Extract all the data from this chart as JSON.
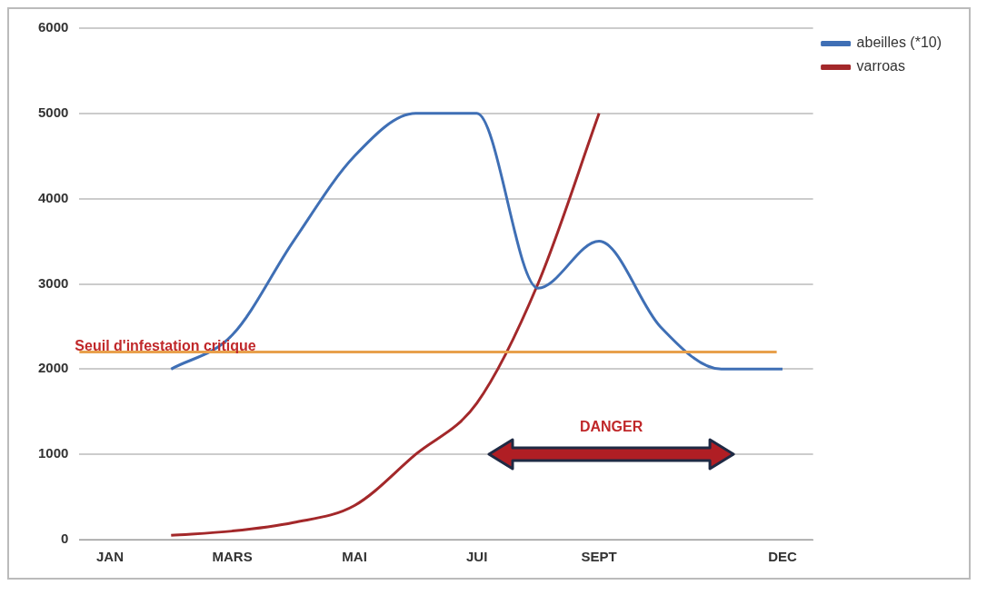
{
  "chart_data": {
    "type": "line",
    "categories": [
      "JAN",
      null,
      "MARS",
      null,
      "MAI",
      null,
      "JUI",
      null,
      "SEPT",
      null,
      null,
      "DEC"
    ],
    "series": [
      {
        "name": "abeilles (*10)",
        "color": "#3f6fb5",
        "values": [
          null,
          2000,
          2400,
          3500,
          4500,
          5000,
          5000,
          2950,
          3500,
          2500,
          2000,
          2000
        ]
      },
      {
        "name": "varroas",
        "color": "#a3282a",
        "values": [
          null,
          50,
          100,
          200,
          400,
          1000,
          1600,
          3000,
          5000,
          null,
          null,
          null
        ]
      }
    ],
    "ylim": [
      0,
      6000
    ],
    "yticks": [
      0,
      1000,
      2000,
      3000,
      4000,
      5000,
      6000
    ],
    "grid": "y",
    "legend": "top right",
    "marker": "none",
    "line_style": "solid",
    "ref_lines": [
      {
        "axis": "y",
        "value": 2200,
        "label": "Seuil d'infestation critique",
        "color": "#e8a04c"
      }
    ],
    "annotations": [
      "DANGER"
    ]
  }
}
